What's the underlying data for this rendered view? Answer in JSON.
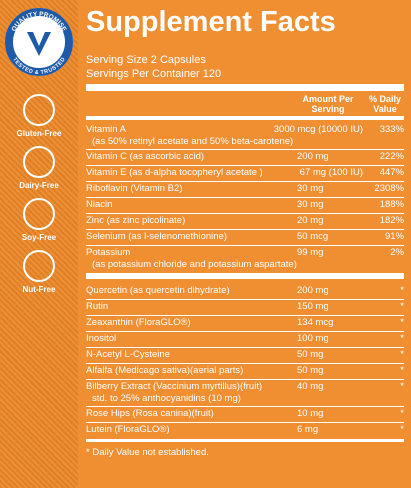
{
  "badge": {
    "top": "QUALITY PROMISE",
    "bottom": "TESTED & TRUSTED"
  },
  "icons": [
    "Gluten-Free",
    "Dairy-Free",
    "Soy-Free",
    "Nut-Free"
  ],
  "header": {
    "title": "Supplement Facts",
    "serving_size": "Serving Size 2 Capsules",
    "servings": "Servings Per Container 120"
  },
  "columns": {
    "amount": "Amount Per Serving",
    "dv": "% Daily Value"
  },
  "sections": [
    [
      {
        "name": "Vitamin A",
        "sub": "(as 50% retinyl acetate and 50% beta-carotene)",
        "amount": "3000 mcg (10000 IU)",
        "dv": "333%"
      },
      {
        "name": "Vitamin C (as ascorbic acid)",
        "amount": "200 mg",
        "dv": "222%"
      },
      {
        "name": "Vitamin E (as d-alpha tocopheryl acetate )",
        "amount": "67 mg (100 IU)",
        "dv": "447%"
      },
      {
        "name": "Riboflavin (Vitamin B2)",
        "amount": "30 mg",
        "dv": "2308%"
      },
      {
        "name": "Niacin",
        "amount": "30 mg",
        "dv": "188%"
      },
      {
        "name": "Zinc (as zinc picolinate)",
        "amount": "20 mg",
        "dv": "182%"
      },
      {
        "name": "Selenium (as l-selenomethionine)",
        "amount": "50 mcg",
        "dv": "91%"
      },
      {
        "name": "Potassium",
        "sub": "(as potassium chloride and potassium aspartate)",
        "amount": "99 mg",
        "dv": "2%"
      }
    ],
    [
      {
        "name": "Quercetin (as quercetin dihydrate)",
        "amount": "200 mg",
        "dv": "*"
      },
      {
        "name": "Rutin",
        "amount": "150 mg",
        "dv": "*"
      },
      {
        "name": "Zeaxanthin (FloraGLO®)",
        "amount": "134 mcg",
        "dv": "*"
      },
      {
        "name": "Inositol",
        "amount": "100 mg",
        "dv": "*"
      },
      {
        "name": "N-Acetyl L-Cysteine",
        "amount": "50 mg",
        "dv": "*"
      },
      {
        "name": "Alfalfa (Medicago sativa)(aerial parts)",
        "amount": "50 mg",
        "dv": "*"
      },
      {
        "name": "Bilberry Extract (Vaccinium myrtillus)(fruit)",
        "sub": "std. to 25% anthocyanidins (10 mg)",
        "amount": "40 mg",
        "dv": "*"
      },
      {
        "name": "Rose Hips (Rosa canina)(fruit)",
        "amount": "10 mg",
        "dv": "*"
      },
      {
        "name": "Lutein (FloraGLO®)",
        "amount": "6 mg",
        "dv": "*"
      }
    ]
  ],
  "footnote": "* Daily Value not established."
}
